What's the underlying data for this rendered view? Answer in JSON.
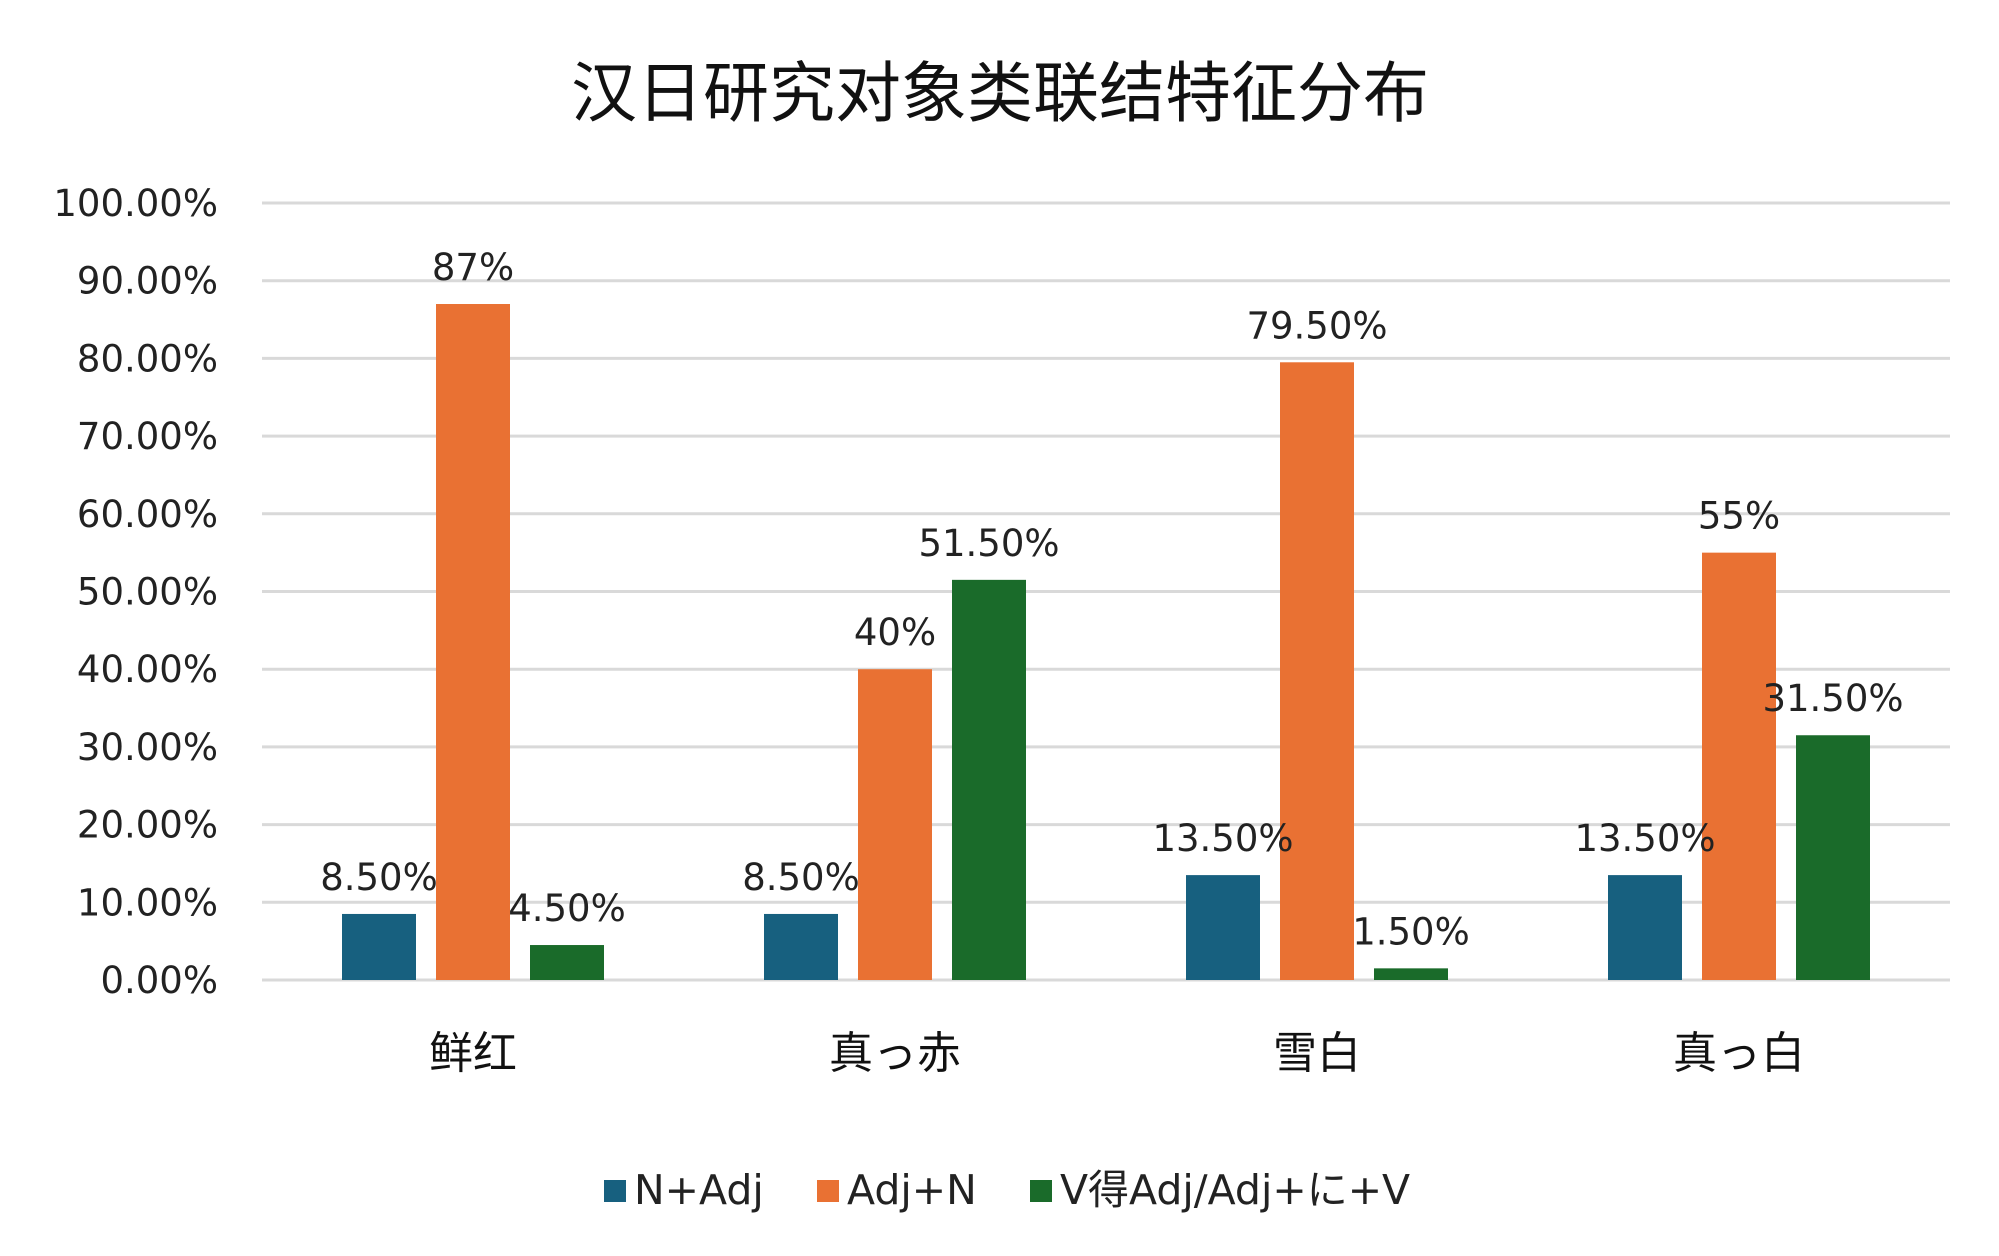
{
  "chart_data": {
    "type": "bar",
    "title": "汉日研究对象类联结特征分布",
    "categories": [
      "鲜红",
      "真っ赤",
      "雪白",
      "真っ白"
    ],
    "series": [
      {
        "name": "N+Adj",
        "color": "#17607f",
        "values": [
          8.5,
          8.5,
          13.5,
          13.5
        ],
        "labels": [
          "8.50%",
          "8.50%",
          "13.50%",
          "13.50%"
        ]
      },
      {
        "name": "Adj+N",
        "color": "#e97133",
        "values": [
          87,
          40,
          79.5,
          55
        ],
        "labels": [
          "87%",
          "40%",
          "79.50%",
          "55%"
        ]
      },
      {
        "name": "V得Adj/Adj+に+V",
        "color": "#1a6b2a",
        "values": [
          4.5,
          51.5,
          1.5,
          31.5
        ],
        "labels": [
          "4.50%",
          "51.50%",
          "1.50%",
          "31.50%"
        ]
      }
    ],
    "ylim": [
      0,
      100
    ],
    "yticks": [
      0,
      10,
      20,
      30,
      40,
      50,
      60,
      70,
      80,
      90,
      100
    ],
    "ytick_labels": [
      "0.00%",
      "10.00%",
      "20.00%",
      "30.00%",
      "40.00%",
      "50.00%",
      "60.00%",
      "70.00%",
      "80.00%",
      "90.00%",
      "100.00%"
    ],
    "grid": true,
    "legend": "bottom"
  }
}
